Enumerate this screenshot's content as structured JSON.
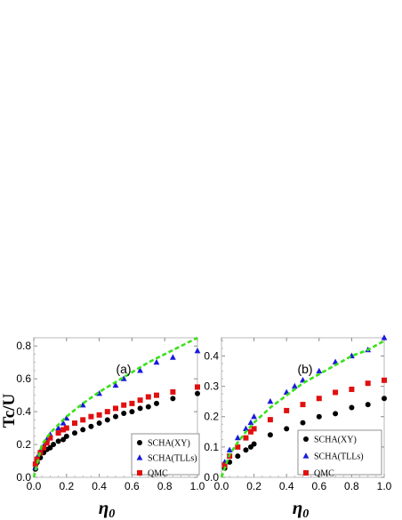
{
  "chart_data": [
    {
      "type": "scatter",
      "panel_label": "(a)",
      "ylabel": "Tc/U",
      "xlabel": "η",
      "xlabel_subscript": "0",
      "xlim": [
        0,
        1.0
      ],
      "ylim": [
        0,
        0.85
      ],
      "xticks": [
        0.0,
        0.2,
        0.4,
        0.6,
        0.8,
        1.0
      ],
      "yticks": [
        0.0,
        0.2,
        0.4,
        0.6,
        0.8
      ],
      "tick_labels_x": [
        "0.0",
        "0.2",
        "0.4",
        "0.6",
        "0.8",
        "1.0"
      ],
      "tick_labels_y": [
        "0.0",
        "0.2",
        "0.4",
        "0.6",
        "0.8"
      ],
      "legend_position": "bottom-right",
      "series": [
        {
          "name": "SCHA(XY)",
          "marker": "circle",
          "color": "#000000",
          "x": [
            0.01,
            0.02,
            0.04,
            0.06,
            0.08,
            0.1,
            0.12,
            0.15,
            0.18,
            0.2,
            0.25,
            0.3,
            0.35,
            0.4,
            0.45,
            0.5,
            0.55,
            0.6,
            0.65,
            0.7,
            0.75,
            0.85,
            1.0
          ],
          "y": [
            0.05,
            0.09,
            0.12,
            0.15,
            0.17,
            0.18,
            0.2,
            0.22,
            0.23,
            0.25,
            0.27,
            0.29,
            0.31,
            0.33,
            0.35,
            0.37,
            0.39,
            0.4,
            0.42,
            0.43,
            0.45,
            0.48,
            0.51
          ]
        },
        {
          "name": "SCHA(TLLs)",
          "marker": "triangle",
          "color": "#1a1adb",
          "x": [
            0.01,
            0.02,
            0.04,
            0.06,
            0.08,
            0.1,
            0.15,
            0.18,
            0.2,
            0.3,
            0.4,
            0.5,
            0.55,
            0.65,
            0.75,
            0.85,
            1.0
          ],
          "y": [
            0.06,
            0.12,
            0.16,
            0.19,
            0.23,
            0.26,
            0.3,
            0.33,
            0.36,
            0.44,
            0.51,
            0.56,
            0.6,
            0.65,
            0.7,
            0.73,
            0.77
          ]
        },
        {
          "name": "QMC",
          "marker": "square",
          "color": "#e01010",
          "x": [
            0.01,
            0.02,
            0.04,
            0.06,
            0.08,
            0.1,
            0.15,
            0.18,
            0.2,
            0.25,
            0.3,
            0.35,
            0.4,
            0.45,
            0.5,
            0.55,
            0.6,
            0.65,
            0.7,
            0.75,
            0.85,
            1.0
          ],
          "y": [
            0.08,
            0.11,
            0.15,
            0.18,
            0.21,
            0.24,
            0.27,
            0.29,
            0.3,
            0.33,
            0.35,
            0.37,
            0.38,
            0.4,
            0.42,
            0.44,
            0.45,
            0.47,
            0.49,
            0.5,
            0.52,
            0.55
          ]
        },
        {
          "name": "",
          "marker": "dashed-line",
          "color": "#39e018",
          "x": [
            0.0,
            0.05,
            0.1,
            0.15,
            0.2,
            0.3,
            0.4,
            0.5,
            0.6,
            0.7,
            0.8,
            0.9,
            1.0
          ],
          "y": [
            0.0,
            0.2,
            0.27,
            0.32,
            0.37,
            0.45,
            0.52,
            0.58,
            0.64,
            0.7,
            0.75,
            0.8,
            0.85
          ]
        }
      ]
    },
    {
      "type": "scatter",
      "panel_label": "(b)",
      "ylabel": "",
      "xlabel": "η",
      "xlabel_subscript": "0",
      "xlim": [
        0,
        1.0
      ],
      "ylim": [
        0,
        0.46
      ],
      "xticks": [
        0.0,
        0.2,
        0.4,
        0.6,
        0.8,
        1.0
      ],
      "yticks": [
        0.0,
        0.1,
        0.2,
        0.3,
        0.4
      ],
      "tick_labels_x": [
        "0.0",
        "0.2",
        "0.4",
        "0.6",
        "0.8",
        "1.0"
      ],
      "tick_labels_y": [
        "0.0",
        "0.1",
        "0.2",
        "0.3",
        "0.4"
      ],
      "legend_position": "bottom-right",
      "series": [
        {
          "name": "SCHA(XY)",
          "marker": "circle",
          "color": "#000000",
          "x": [
            0.02,
            0.05,
            0.1,
            0.15,
            0.18,
            0.2,
            0.3,
            0.4,
            0.5,
            0.6,
            0.7,
            0.8,
            0.9,
            1.0
          ],
          "y": [
            0.03,
            0.05,
            0.07,
            0.09,
            0.1,
            0.11,
            0.14,
            0.16,
            0.18,
            0.2,
            0.21,
            0.23,
            0.24,
            0.26
          ]
        },
        {
          "name": "SCHA(TLLs)",
          "marker": "triangle",
          "color": "#1a1adb",
          "x": [
            0.02,
            0.05,
            0.1,
            0.15,
            0.18,
            0.2,
            0.3,
            0.4,
            0.45,
            0.5,
            0.6,
            0.7,
            0.8,
            0.9,
            1.0
          ],
          "y": [
            0.05,
            0.09,
            0.13,
            0.16,
            0.18,
            0.2,
            0.25,
            0.28,
            0.3,
            0.32,
            0.35,
            0.38,
            0.4,
            0.42,
            0.46
          ]
        },
        {
          "name": "QMC",
          "marker": "square",
          "color": "#e01010",
          "x": [
            0.02,
            0.05,
            0.1,
            0.15,
            0.18,
            0.2,
            0.3,
            0.4,
            0.5,
            0.6,
            0.7,
            0.8,
            0.9,
            1.0
          ],
          "y": [
            0.04,
            0.07,
            0.1,
            0.13,
            0.15,
            0.16,
            0.19,
            0.22,
            0.24,
            0.26,
            0.28,
            0.29,
            0.31,
            0.32
          ]
        },
        {
          "name": "",
          "marker": "dashed-line",
          "color": "#39e018",
          "x": [
            0.0,
            0.05,
            0.1,
            0.15,
            0.2,
            0.3,
            0.4,
            0.5,
            0.6,
            0.7,
            0.8,
            0.9,
            1.0
          ],
          "y": [
            0.0,
            0.075,
            0.115,
            0.15,
            0.18,
            0.23,
            0.27,
            0.31,
            0.34,
            0.37,
            0.4,
            0.42,
            0.45
          ]
        }
      ]
    }
  ]
}
